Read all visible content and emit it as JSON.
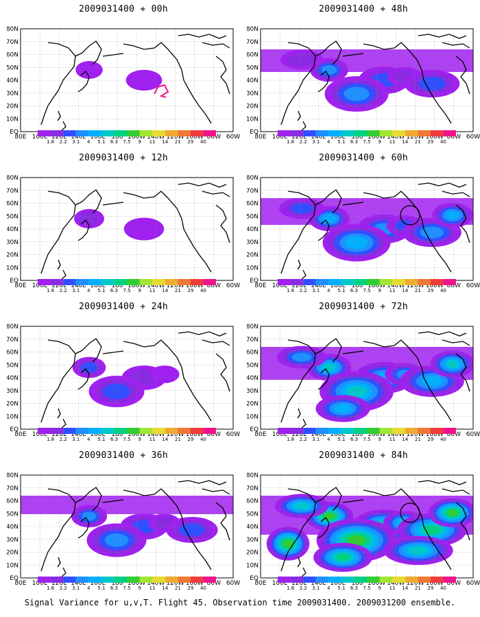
{
  "panels": [
    {
      "title": "2009031400 + 00h",
      "intensity": 0.1,
      "circle": false
    },
    {
      "title": "2009031400 + 48h",
      "intensity": 0.55,
      "circle": false
    },
    {
      "title": "2009031400 + 12h",
      "intensity": 0.22,
      "circle": false
    },
    {
      "title": "2009031400 + 60h",
      "intensity": 0.65,
      "circle": true
    },
    {
      "title": "2009031400 + 24h",
      "intensity": 0.35,
      "circle": false
    },
    {
      "title": "2009031400 + 72h",
      "intensity": 0.8,
      "circle": false
    },
    {
      "title": "2009031400 + 36h",
      "intensity": 0.45,
      "circle": false
    },
    {
      "title": "2009031400 + 84h",
      "intensity": 0.95,
      "circle": true
    }
  ],
  "lat_labels": [
    "80N",
    "70N",
    "60N",
    "50N",
    "40N",
    "30N",
    "20N",
    "10N",
    "EQ"
  ],
  "lon_labels": [
    "80E",
    "100E",
    "120E",
    "140E",
    "160E",
    "180",
    "160W",
    "140W",
    "120W",
    "100W",
    "80W",
    "60W"
  ],
  "colorbar": {
    "levels": [
      "1.8",
      "2.2",
      "3.1",
      "4",
      "5.1",
      "6.3",
      "7.5",
      "9",
      "11",
      "14",
      "21",
      "29",
      "40"
    ],
    "levels_36h": [
      "1.6",
      "2.2",
      "3.1",
      "4",
      "5.1",
      "6.3",
      "7.5",
      "9",
      "11",
      "14",
      "21",
      "29",
      "40"
    ],
    "colors": [
      "#a020f0",
      "#8a2be2",
      "#3050ff",
      "#1e90ff",
      "#00b0ff",
      "#00c8c8",
      "#00d280",
      "#32cd32",
      "#a0e632",
      "#e6dc32",
      "#f0aa32",
      "#f07832",
      "#f03c3c",
      "#f0148c"
    ]
  },
  "caption": "Signal Variance for u,v,T. Flight 45. Observation time 2009031400. 2009031200 ensemble."
}
